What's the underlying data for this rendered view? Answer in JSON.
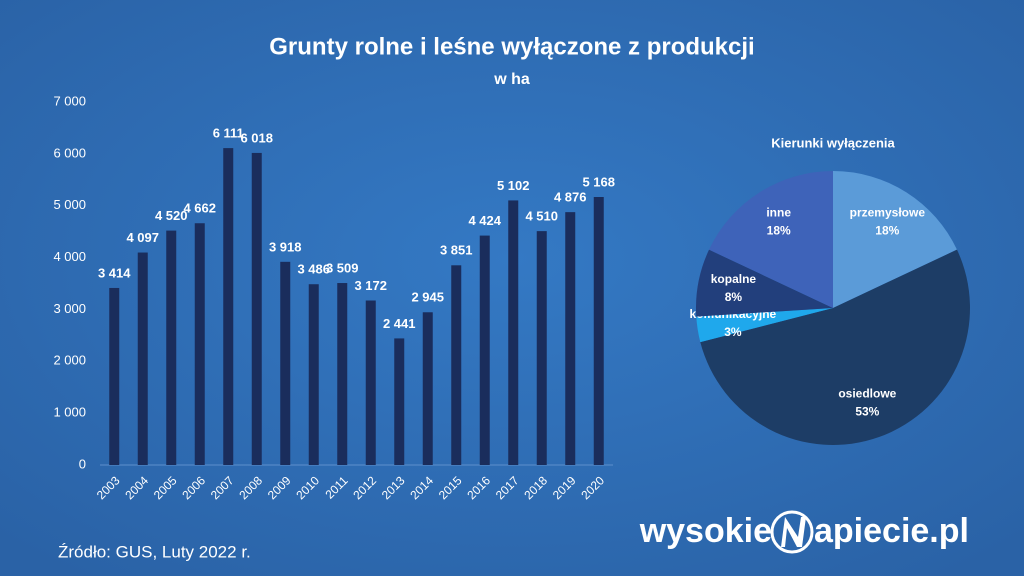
{
  "chart_data": [
    {
      "type": "bar",
      "title": "Grunty rolne i leśne wyłączone z produkcji",
      "subtitle": "w ha",
      "categories": [
        "2003",
        "2004",
        "2005",
        "2006",
        "2007",
        "2008",
        "2009",
        "2010",
        "2011",
        "2012",
        "2013",
        "2014",
        "2015",
        "2016",
        "2017",
        "2018",
        "2019",
        "2020"
      ],
      "values": [
        3414,
        4097,
        4520,
        4662,
        6111,
        6018,
        3918,
        3486,
        3509,
        3172,
        2441,
        2945,
        3851,
        4424,
        5102,
        4510,
        4876,
        5168
      ],
      "value_labels": [
        "3 414",
        "4 097",
        "4 520",
        "4 662",
        "6 111",
        "6 018",
        "3 918",
        "3 486",
        "3 509",
        "3 172",
        "2 441",
        "2 945",
        "3 851",
        "4 424",
        "5 102",
        "4 510",
        "4 876",
        "5 168"
      ],
      "color": "#1a2d5c",
      "ylim": [
        0,
        7000
      ],
      "yticks": [
        0,
        {
          "value": 1000,
          "label": "1 000"
        },
        {
          "value": 2000,
          "label": "2 000"
        },
        {
          "value": 3000,
          "label": "3 000"
        },
        {
          "value": 4000,
          "label": "4 000"
        },
        {
          "value": 5000,
          "label": "5 000"
        },
        {
          "value": 6000,
          "label": "6 000"
        },
        {
          "value": 7000,
          "label": "7 000"
        }
      ],
      "grid": false
    },
    {
      "type": "pie",
      "title": "Kierunki wyłączenia",
      "categories": [
        "przemysłowe",
        "osiedlowe",
        "komunikacyjne",
        "kopalne",
        "inne"
      ],
      "values": [
        18,
        53,
        3,
        8,
        18
      ],
      "value_labels": [
        "18%",
        "53%",
        "3%",
        "8%",
        "18%"
      ],
      "colors": [
        "#5b9bd8",
        "#1d3d66",
        "#1fa8ec",
        "#223f7c",
        "#3e63b9"
      ]
    }
  ],
  "source": "Źródło: GUS, Luty 2022 r.",
  "logo": {
    "left": "wysokie",
    "right": "apiecie.pl"
  }
}
